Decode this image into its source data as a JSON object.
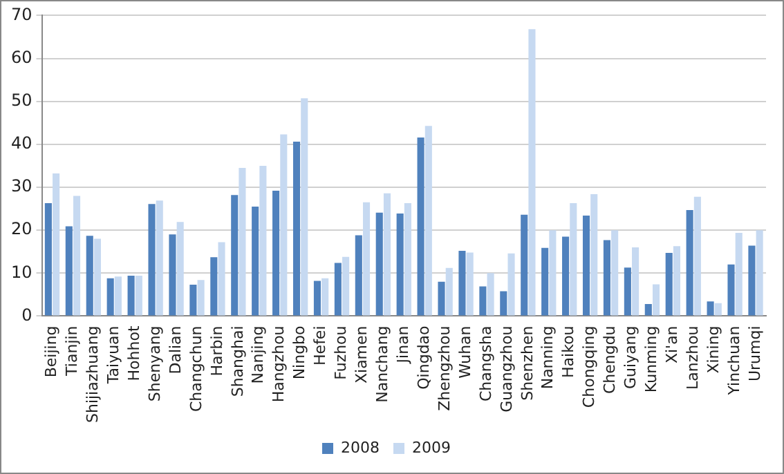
{
  "chart_data": {
    "type": "bar",
    "categories": [
      "Beijing",
      "Tianjin",
      "Shijiazhuang",
      "Taiyuan",
      "Hohhot",
      "Shenyang",
      "Dalian",
      "Changchun",
      "Harbin",
      "Shanghai",
      "Nanjing",
      "Hangzhou",
      "Ningbo",
      "Hefei",
      "Fuzhou",
      "Xiamen",
      "Nanchang",
      "Jinan",
      "Qingdao",
      "Zhengzhou",
      "Wuhan",
      "Changsha",
      "Guangzhou",
      "Shenzhen",
      "Nanning",
      "Haikou",
      "Chongqing",
      "Chengdu",
      "Guiyang",
      "Kunming",
      "Xi'an",
      "Lanzhou",
      "Xining",
      "Yinchuan",
      "Urumqi"
    ],
    "series": [
      {
        "name": "2008",
        "color": "#4f81bd",
        "values": [
          26.3,
          20.9,
          18.7,
          8.8,
          9.4,
          26.1,
          19,
          7.3,
          13.7,
          28.2,
          25.5,
          29.2,
          40.6,
          8.2,
          12.4,
          18.8,
          24.1,
          23.9,
          41.6,
          8,
          15.2,
          6.9,
          5.8,
          23.6,
          15.9,
          18.5,
          23.4,
          17.7,
          11.3,
          2.8,
          14.7,
          24.7,
          3.4,
          12,
          16.4
        ]
      },
      {
        "name": "2009",
        "color": "#c6d9f1",
        "values": [
          33.2,
          28,
          18,
          9.2,
          9.4,
          26.9,
          21.9,
          8.4,
          17.2,
          34.5,
          35,
          42.3,
          50.7,
          8.8,
          13.8,
          26.5,
          28.6,
          26.3,
          44.3,
          11.2,
          14.8,
          10,
          14.6,
          66.8,
          20,
          26.3,
          28.4,
          20,
          16,
          7.4,
          16.3,
          27.8,
          3,
          19.4,
          20
        ]
      }
    ],
    "ylim": [
      0,
      70
    ],
    "yticks": [
      0,
      10,
      20,
      30,
      40,
      50,
      60,
      70
    ],
    "grid": "y",
    "legend": "bottom"
  }
}
